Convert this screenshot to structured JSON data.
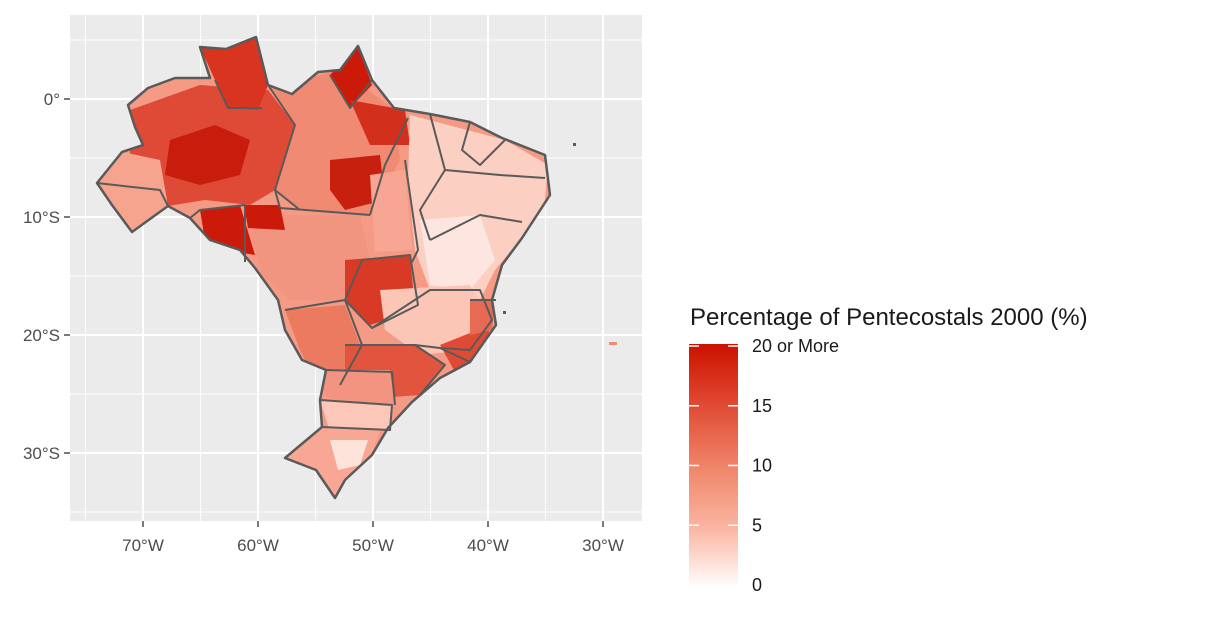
{
  "map": {
    "x_axis": {
      "ticks": [
        {
          "lon": -70,
          "label": "70°W"
        },
        {
          "lon": -60,
          "label": "60°W"
        },
        {
          "lon": -50,
          "label": "50°W"
        },
        {
          "lon": -40,
          "label": "40°W"
        },
        {
          "lon": -30,
          "label": "30°W"
        }
      ],
      "range": [
        -76,
        -28
      ]
    },
    "y_axis": {
      "ticks": [
        {
          "lat": 0,
          "label": "0°"
        },
        {
          "lat": -10,
          "label": "10°S"
        },
        {
          "lat": -20,
          "label": "20°S"
        },
        {
          "lat": -30,
          "label": "30°S"
        }
      ],
      "range": [
        -36,
        7
      ]
    },
    "region": "Brazil",
    "fill_variable": "Percentage of Pentecostals 2000",
    "grid": true
  },
  "legend": {
    "title": "Percentage of Pentecostals 2000 (%)",
    "placement": "right",
    "range": [
      0,
      20
    ],
    "low_color": "#ffffff",
    "high_color": "#cc1100",
    "ticks": [
      {
        "value": 0,
        "label": "0"
      },
      {
        "value": 5,
        "label": "5"
      },
      {
        "value": 10,
        "label": "10"
      },
      {
        "value": 15,
        "label": "15"
      },
      {
        "value": 20,
        "label": "20 or More"
      }
    ]
  },
  "colors": {
    "panel": "#ebebeb",
    "grid": "#ffffff",
    "border": "#5a5a5a",
    "low": "#fde4dc",
    "mid": "#ee8065",
    "high": "#cc1100"
  }
}
